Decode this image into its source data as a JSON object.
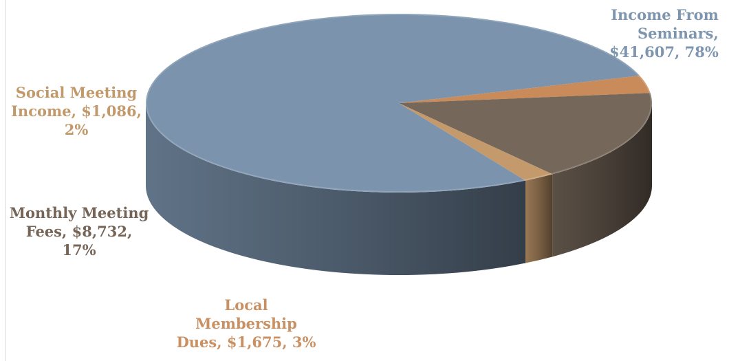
{
  "chart_data": {
    "type": "pie",
    "variant": "3d",
    "title": "",
    "slices": [
      {
        "name": "Income From Seminars",
        "value": 41607,
        "percent": 78,
        "color": "#7b93ad",
        "label_lines": [
          "Income From",
          "Seminars,",
          "$41,607, 78%"
        ]
      },
      {
        "name": "Local Membership Dues",
        "value": 1675,
        "percent": 3,
        "color": "#c98b59",
        "label_lines": [
          "Local",
          "Membership",
          "Dues, $1,675, 3%"
        ]
      },
      {
        "name": "Monthly Meeting Fees",
        "value": 8732,
        "percent": 17,
        "color": "#75675a",
        "label_lines": [
          "Monthly Meeting",
          "Fees, $8,732,",
          "17%"
        ]
      },
      {
        "name": "Social Meeting Income",
        "value": 1086,
        "percent": 2,
        "color": "#c49a6c",
        "label_lines": [
          "Social Meeting",
          "Income, $1,086,",
          "2%"
        ]
      }
    ],
    "label_colors": {
      "Income From Seminars": "#7d95ae",
      "Local Membership Dues": "#c99163",
      "Monthly Meeting Fees": "#766557",
      "Social Meeting Income": "#c2996a"
    }
  }
}
